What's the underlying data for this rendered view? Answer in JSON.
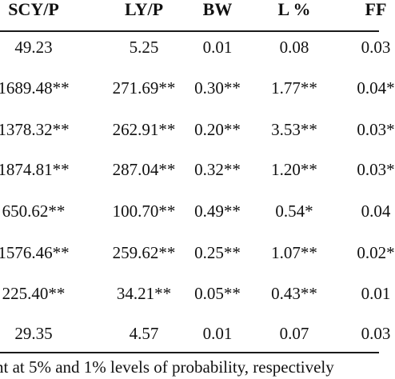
{
  "table": {
    "columns": [
      "SCY/P",
      "LY/P",
      "BW",
      "L %",
      "FF"
    ],
    "rows": [
      [
        "49.23",
        "5.25",
        "0.01",
        "0.08",
        "0.03"
      ],
      [
        "1689.48**",
        "271.69**",
        "0.30**",
        "1.77**",
        "0.04*"
      ],
      [
        "1378.32**",
        "262.91**",
        "0.20**",
        "3.53**",
        "0.03*"
      ],
      [
        "1874.81**",
        "287.04**",
        "0.32**",
        "1.20**",
        "0.03*"
      ],
      [
        "650.62**",
        "100.70**",
        "0.49**",
        "0.54*",
        "0.04"
      ],
      [
        "1576.46**",
        "259.62**",
        "0.25**",
        "1.07**",
        "0.02*"
      ],
      [
        "225.40**",
        "34.21**",
        "0.05**",
        "0.43**",
        "0.01"
      ],
      [
        "29.35",
        "4.57",
        "0.01",
        "0.07",
        "0.03"
      ]
    ],
    "footnote": "nt at 5% and 1% levels of probability, respectively"
  }
}
